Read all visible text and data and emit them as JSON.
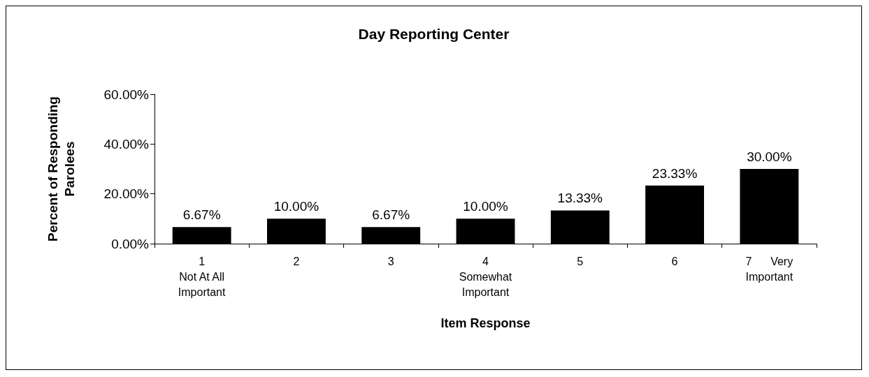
{
  "chart_data": {
    "type": "bar",
    "title": "Day Reporting Center",
    "xlabel": "Item Response",
    "ylabel": "Percent of Responding\nParolees",
    "categories": [
      "1\nNot At All\nImportant",
      "2",
      "3",
      "4\nSomewhat\nImportant",
      "5",
      "6",
      "7      Very\nImportant"
    ],
    "values": [
      6.67,
      10.0,
      6.67,
      10.0,
      13.33,
      23.33,
      30.0
    ],
    "value_labels": [
      "6.67%",
      "10.00%",
      "6.67%",
      "10.00%",
      "13.33%",
      "23.33%",
      "30.00%"
    ],
    "color": "#000000",
    "ylim": [
      0,
      60
    ],
    "yticks": [
      {
        "value": 0,
        "label": "0.00%"
      },
      {
        "value": 20,
        "label": "20.00%"
      },
      {
        "value": 40,
        "label": "40.00%"
      },
      {
        "value": 60,
        "label": "60.00%"
      }
    ],
    "grid": false
  }
}
